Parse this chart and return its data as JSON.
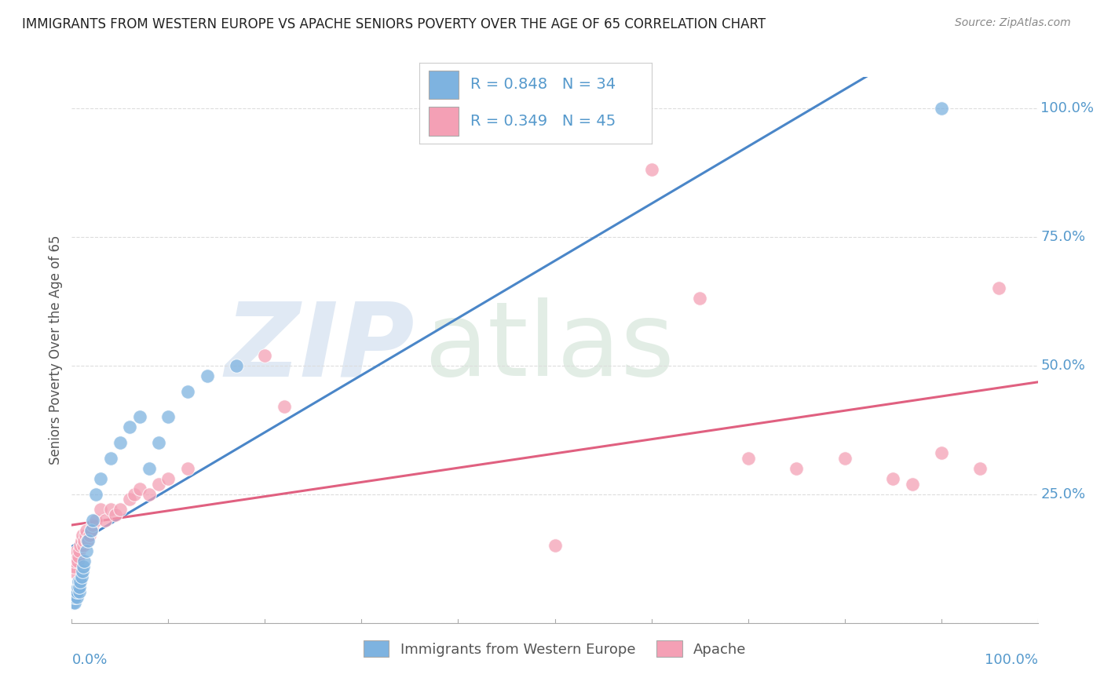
{
  "title": "IMMIGRANTS FROM WESTERN EUROPE VS APACHE SENIORS POVERTY OVER THE AGE OF 65 CORRELATION CHART",
  "source": "Source: ZipAtlas.com",
  "ylabel": "Seniors Poverty Over the Age of 65",
  "legend_label1": "Immigrants from Western Europe",
  "legend_label2": "Apache",
  "legend_r1": "R = 0.848",
  "legend_n1": "N = 34",
  "legend_r2": "R = 0.349",
  "legend_n2": "N = 45",
  "color_blue": "#7eb3e0",
  "color_pink": "#f4a0b5",
  "color_blue_line": "#4a86c8",
  "color_pink_line": "#e06080",
  "axis_label_color": "#5599cc",
  "title_color": "#222222",
  "source_color": "#888888",
  "grid_color": "#dddddd",
  "blue_x": [
    0.001,
    0.002,
    0.002,
    0.003,
    0.003,
    0.004,
    0.005,
    0.005,
    0.006,
    0.007,
    0.008,
    0.008,
    0.009,
    0.01,
    0.011,
    0.012,
    0.013,
    0.015,
    0.017,
    0.02,
    0.022,
    0.025,
    0.03,
    0.04,
    0.05,
    0.06,
    0.07,
    0.08,
    0.09,
    0.1,
    0.12,
    0.14,
    0.17,
    0.9
  ],
  "blue_y": [
    0.04,
    0.05,
    0.06,
    0.04,
    0.05,
    0.06,
    0.05,
    0.06,
    0.07,
    0.08,
    0.06,
    0.07,
    0.08,
    0.09,
    0.1,
    0.11,
    0.12,
    0.14,
    0.16,
    0.18,
    0.2,
    0.25,
    0.28,
    0.32,
    0.35,
    0.38,
    0.4,
    0.3,
    0.35,
    0.4,
    0.45,
    0.48,
    0.5,
    1.0
  ],
  "pink_x": [
    0.001,
    0.002,
    0.003,
    0.004,
    0.005,
    0.006,
    0.007,
    0.008,
    0.009,
    0.01,
    0.011,
    0.012,
    0.013,
    0.014,
    0.015,
    0.016,
    0.018,
    0.02,
    0.022,
    0.025,
    0.03,
    0.035,
    0.04,
    0.045,
    0.05,
    0.06,
    0.065,
    0.07,
    0.08,
    0.09,
    0.1,
    0.12,
    0.2,
    0.22,
    0.5,
    0.6,
    0.65,
    0.7,
    0.75,
    0.8,
    0.85,
    0.87,
    0.9,
    0.94,
    0.96
  ],
  "pink_y": [
    0.1,
    0.11,
    0.12,
    0.13,
    0.14,
    0.12,
    0.13,
    0.14,
    0.15,
    0.16,
    0.17,
    0.15,
    0.16,
    0.17,
    0.18,
    0.16,
    0.17,
    0.18,
    0.19,
    0.2,
    0.22,
    0.2,
    0.22,
    0.21,
    0.22,
    0.24,
    0.25,
    0.26,
    0.25,
    0.27,
    0.28,
    0.3,
    0.52,
    0.42,
    0.15,
    0.88,
    0.63,
    0.32,
    0.3,
    0.32,
    0.28,
    0.27,
    0.33,
    0.3,
    0.65
  ],
  "xlim": [
    0.0,
    1.0
  ],
  "ylim": [
    0.0,
    1.06
  ],
  "yticks": [
    0.0,
    0.25,
    0.5,
    0.75,
    1.0
  ],
  "ytick_labels": [
    "0.0%",
    "25.0%",
    "50.0%",
    "75.0%",
    "100.0%"
  ]
}
